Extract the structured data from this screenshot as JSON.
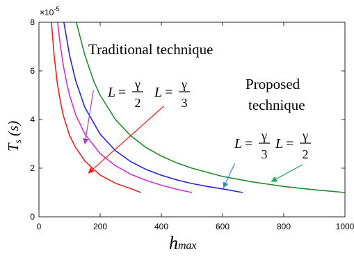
{
  "chart_data": {
    "type": "line",
    "title": "",
    "xlabel": "h",
    "xlabel_sub": "max",
    "ylabel": "T",
    "ylabel_sub": "s",
    "ylabel_unit": "(s)",
    "y_exponent": "×10",
    "y_exponent_power": "-5",
    "xlim": [
      0,
      1000
    ],
    "ylim": [
      0,
      8
    ],
    "xticks": [
      0,
      200,
      400,
      600,
      800,
      1000
    ],
    "yticks": [
      0,
      2,
      4,
      6,
      8
    ],
    "grid": false,
    "legend": "none",
    "series": [
      {
        "color": "#ee1c1c",
        "x": [
          40,
          50,
          60,
          70,
          80,
          100,
          120,
          150,
          175,
          200,
          250,
          300,
          333
        ],
        "y": [
          8.1,
          6.6,
          5.5,
          4.75,
          4.15,
          3.35,
          2.85,
          2.3,
          2.0,
          1.72,
          1.38,
          1.16,
          1.0
        ]
      },
      {
        "color": "#d22ed2",
        "x": [
          60,
          70,
          80,
          90,
          100,
          120,
          150,
          200,
          250,
          300,
          350,
          400,
          450,
          500
        ],
        "y": [
          8.1,
          7.05,
          6.2,
          5.55,
          5.0,
          4.2,
          3.4,
          2.6,
          2.1,
          1.75,
          1.5,
          1.3,
          1.13,
          1.0
        ]
      },
      {
        "color": "#2323e0",
        "x": [
          80,
          100,
          120,
          150,
          200,
          250,
          300,
          350,
          400,
          450,
          500,
          550,
          600,
          666
        ],
        "y": [
          8.1,
          6.65,
          5.6,
          4.5,
          3.4,
          2.72,
          2.27,
          1.95,
          1.71,
          1.52,
          1.37,
          1.25,
          1.15,
          1.0
        ]
      },
      {
        "color": "#1f8b2c",
        "x": [
          120,
          150,
          180,
          200,
          250,
          300,
          350,
          400,
          450,
          500,
          600,
          700,
          800,
          900,
          1000
        ],
        "y": [
          8.1,
          6.65,
          5.55,
          5.0,
          4.0,
          3.33,
          2.85,
          2.5,
          2.22,
          2.0,
          1.66,
          1.43,
          1.25,
          1.11,
          1.0
        ]
      }
    ],
    "annotations": {
      "traditional": "Traditional technique",
      "proposed_line1": "Proposed",
      "proposed_line2": "technique",
      "L": "L",
      "eq": "=",
      "gamma": "γ",
      "den2": "2",
      "den3": "3"
    },
    "arrows": [
      {
        "color": "#a040c8",
        "from": [
          178,
          5.2
        ],
        "to": [
          150,
          3.0
        ]
      },
      {
        "color": "#ee1c1c",
        "from": [
          408,
          4.55
        ],
        "to": [
          162,
          1.8
        ]
      },
      {
        "color": "#2c8fd0",
        "from": [
          640,
          2.2
        ],
        "to": [
          603,
          1.2
        ]
      },
      {
        "color": "#1aa050",
        "from": [
          862,
          2.15
        ],
        "to": [
          760,
          1.45
        ]
      }
    ]
  }
}
